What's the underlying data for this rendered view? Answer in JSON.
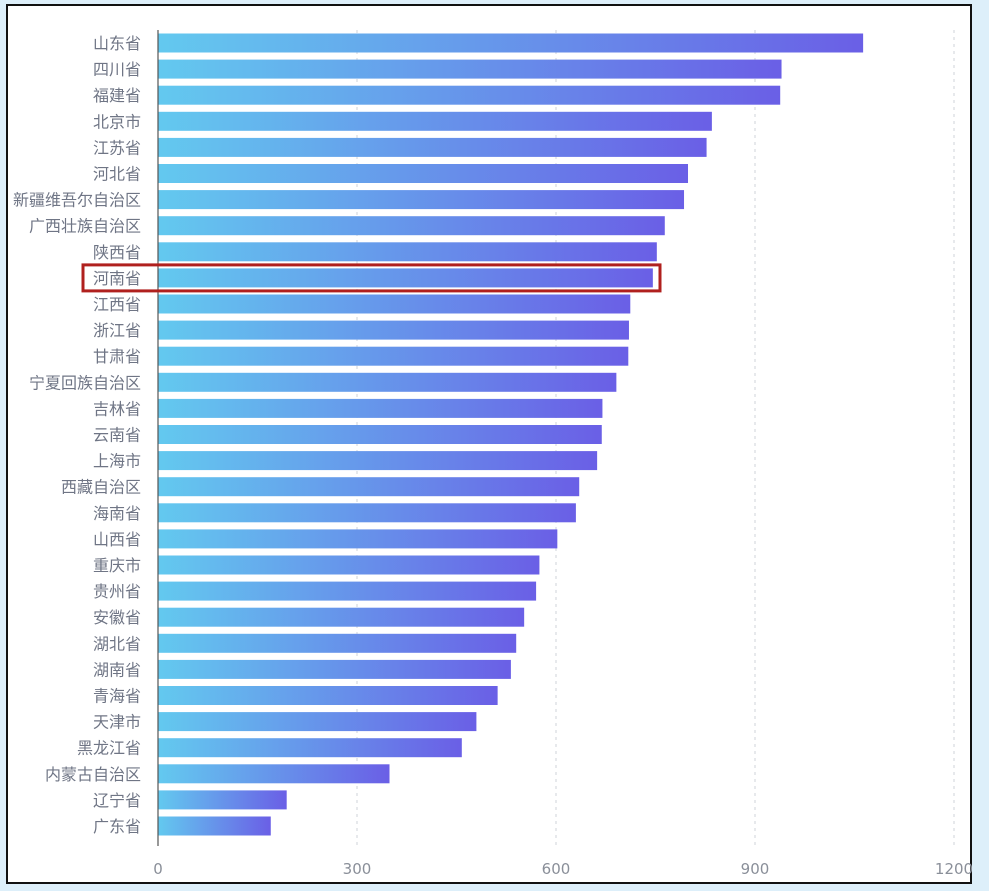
{
  "chart_data": {
    "type": "bar",
    "orientation": "horizontal",
    "title": "",
    "xlabel": "",
    "ylabel": "",
    "xlim": [
      0,
      1200
    ],
    "x_ticks": [
      "0",
      "300",
      "600",
      "900",
      "1200"
    ],
    "grid": "vertical dashed",
    "highlight": "河南省",
    "categories": [
      "山东省",
      "四川省",
      "福建省",
      "北京市",
      "江苏省",
      "河北省",
      "新疆维吾尔自治区",
      "广西壮族自治区",
      "陕西省",
      "河南省",
      "江西省",
      "浙江省",
      "甘肃省",
      "宁夏回族自治区",
      "吉林省",
      "云南省",
      "上海市",
      "西藏自治区",
      "海南省",
      "山西省",
      "重庆市",
      "贵州省",
      "安徽省",
      "湖北省",
      "湖南省",
      "青海省",
      "天津市",
      "黑龙江省",
      "内蒙古自治区",
      "辽宁省",
      "广东省"
    ],
    "values": [
      1063,
      940,
      938,
      835,
      827,
      799,
      793,
      764,
      752,
      746,
      712,
      710,
      709,
      691,
      670,
      669,
      662,
      635,
      630,
      602,
      575,
      570,
      552,
      540,
      532,
      512,
      480,
      458,
      349,
      194,
      170
    ],
    "colors": {
      "bar_start": "#63c9ef",
      "bar_end": "#6a5fe6",
      "highlight_border": "#b0201e",
      "axis": "#555555",
      "grid": "#cfd3da",
      "label": "#6f7585"
    }
  }
}
